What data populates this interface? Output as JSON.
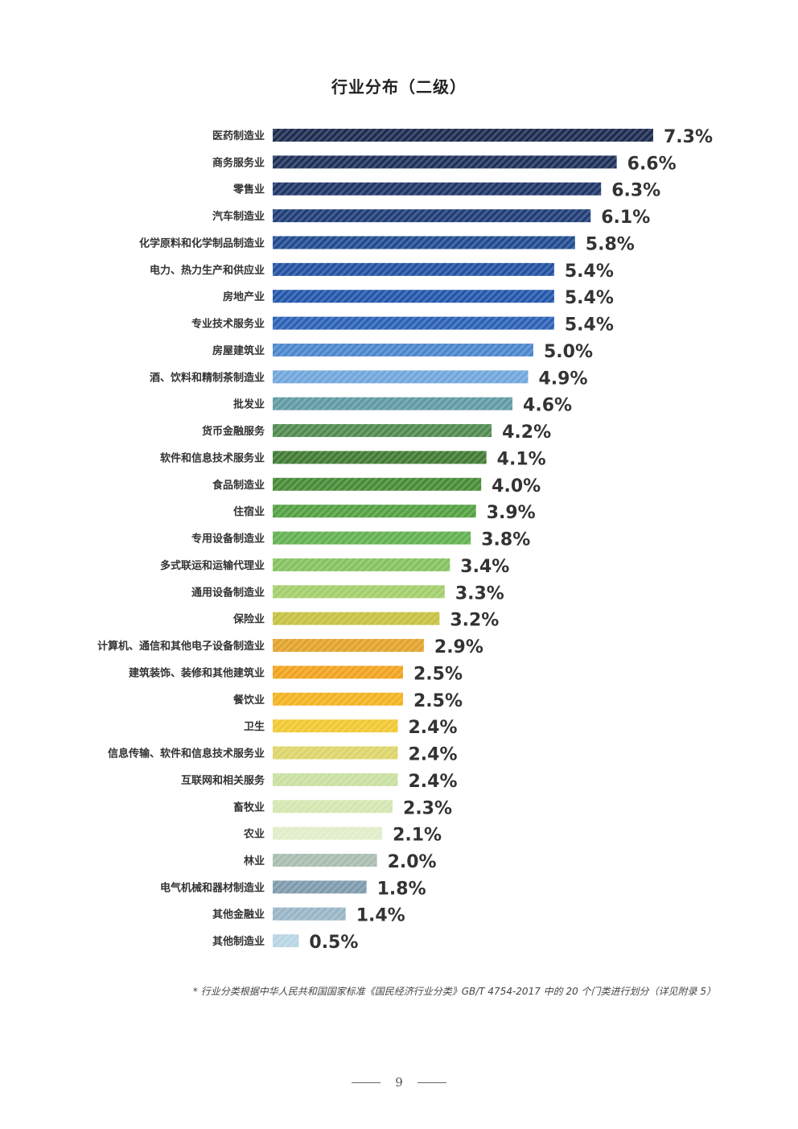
{
  "chart_data": {
    "type": "bar",
    "orientation": "horizontal",
    "title": "行业分布（二级）",
    "categories": [
      "医药制造业",
      "商务服务业",
      "零售业",
      "汽车制造业",
      "化学原料和化学制品制造业",
      "电力、热力生产和供应业",
      "房地产业",
      "专业技术服务业",
      "房屋建筑业",
      "酒、饮料和精制茶制造业",
      "批发业",
      "货币金融服务",
      "软件和信息技术服务业",
      "食品制造业",
      "住宿业",
      "专用设备制造业",
      "多式联运和运输代理业",
      "通用设备制造业",
      "保险业",
      "计算机、通信和其他电子设备制造业",
      "建筑装饰、装修和其他建筑业",
      "餐饮业",
      "卫生",
      "信息传输、软件和信息技术服务业",
      "互联网和相关服务",
      "畜牧业",
      "农业",
      "林业",
      "电气机械和器材制造业",
      "其他金融业",
      "其他制造业"
    ],
    "values": [
      7.3,
      6.6,
      6.3,
      6.1,
      5.8,
      5.4,
      5.4,
      5.4,
      5.0,
      4.9,
      4.6,
      4.2,
      4.1,
      4.0,
      3.9,
      3.8,
      3.4,
      3.3,
      3.2,
      2.9,
      2.5,
      2.5,
      2.4,
      2.4,
      2.4,
      2.3,
      2.1,
      2.0,
      1.8,
      1.4,
      0.5
    ],
    "value_labels": [
      "7.3%",
      "6.6%",
      "6.3%",
      "6.1%",
      "5.8%",
      "5.4%",
      "5.4%",
      "5.4%",
      "5.0%",
      "4.9%",
      "4.6%",
      "4.2%",
      "4.1%",
      "4.0%",
      "3.9%",
      "3.8%",
      "3.4%",
      "3.3%",
      "3.2%",
      "2.9%",
      "2.5%",
      "2.5%",
      "2.4%",
      "2.4%",
      "2.4%",
      "2.3%",
      "2.1%",
      "2.0%",
      "1.8%",
      "1.4%",
      "0.5%"
    ],
    "colors": [
      "#1b2a4e",
      "#1c2f58",
      "#1d3566",
      "#1e3c76",
      "#1f4a8f",
      "#2050a0",
      "#2155aa",
      "#2a60b5",
      "#4a86cc",
      "#6fa6db",
      "#5f9aa3",
      "#4f8a4f",
      "#3f7a32",
      "#468a35",
      "#52a040",
      "#62b050",
      "#84c25e",
      "#a2ce6a",
      "#c6c040",
      "#e2a22a",
      "#f0a21c",
      "#f2b21e",
      "#f0c830",
      "#dcd468",
      "#c8dfa0",
      "#d4e6b0",
      "#e0edc8",
      "#a8bcb0",
      "#7d9aac",
      "#98b4c6",
      "#b8d4e4"
    ],
    "xlim": [
      0,
      7.3
    ],
    "grid": false,
    "legend": "none"
  },
  "footnote": "* 行业分类根据中华人民共和国国家标准《国民经济行业分类》GB/T 4754-2017 中的 20 个门类进行划分（详见附录 5）",
  "page_number": "9"
}
